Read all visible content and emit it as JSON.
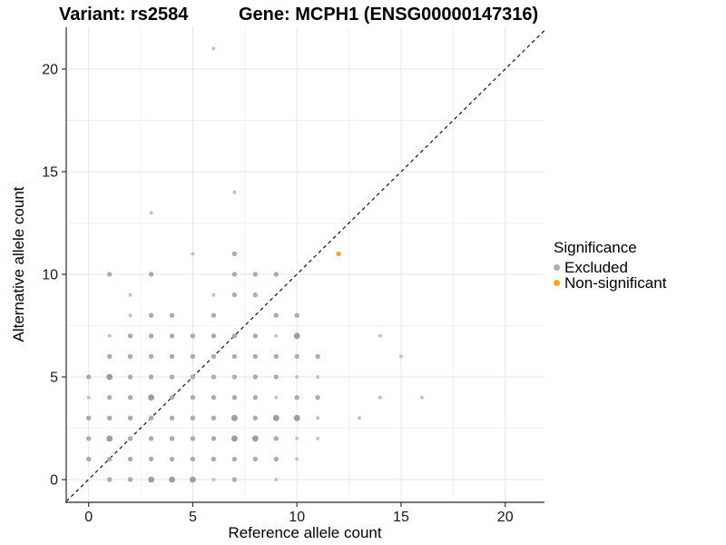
{
  "titles": {
    "left": "Variant: rs2584",
    "right": "Gene: MCPH1 (ENSG00000147316)"
  },
  "axes": {
    "x": {
      "label": "Reference allele count",
      "ticks": [
        0,
        5,
        10,
        15,
        20
      ],
      "minor_ticks": [
        2.5,
        7.5,
        12.5,
        17.5
      ]
    },
    "y": {
      "label": "Alternative allele count",
      "ticks": [
        0,
        5,
        10,
        15,
        20
      ],
      "minor_ticks": [
        2.5,
        7.5,
        12.5,
        17.5
      ]
    }
  },
  "legend": {
    "title": "Significance",
    "entries": [
      {
        "label": "Excluded",
        "color": "#acacac"
      },
      {
        "label": "Non-significant",
        "color": "#f7a434"
      }
    ]
  },
  "colors": {
    "axis_line": "#4a4a4a",
    "tick_mark": "#333333",
    "tick_label": "#1a1a1a",
    "grid_major": "#e6e6e6",
    "grid_minor": "#f2f2f2",
    "identity_line": "#111111",
    "size_tier_fill": {
      "1": "#c3c3c3",
      "2": "#acacac",
      "3": "#9d9d9d"
    }
  },
  "chart_data": {
    "type": "scatter",
    "title": "Variant: rs2584 | Gene: MCPH1 (ENSG00000147316)",
    "xlabel": "Reference allele count",
    "ylabel": "Alternative allele count",
    "xlim": [
      -1.1,
      21.9
    ],
    "ylim": [
      -1.1,
      22.0
    ],
    "grid": true,
    "legend_position": "right",
    "legend_title": "Significance",
    "identity_line": {
      "style": "dashed",
      "equation": "y = x"
    },
    "point_size_tiers_px_radius": {
      "1": 2.0,
      "2": 2.7,
      "3": 3.4
    },
    "series": [
      {
        "name": "Excluded",
        "color": "#acacac",
        "points": [
          [
            1,
            0,
            2
          ],
          [
            2,
            0,
            2
          ],
          [
            3,
            0,
            3
          ],
          [
            4,
            0,
            3
          ],
          [
            5,
            0,
            3
          ],
          [
            6,
            0,
            1
          ],
          [
            7,
            0,
            2
          ],
          [
            9,
            0,
            1
          ],
          [
            0,
            1,
            2
          ],
          [
            1,
            1,
            2
          ],
          [
            2,
            1,
            2
          ],
          [
            3,
            1,
            2
          ],
          [
            4,
            1,
            2
          ],
          [
            5,
            1,
            2
          ],
          [
            6,
            1,
            2
          ],
          [
            7,
            1,
            2
          ],
          [
            8,
            1,
            2
          ],
          [
            9,
            1,
            2
          ],
          [
            10,
            1,
            1
          ],
          [
            0,
            2,
            2
          ],
          [
            1,
            2,
            3
          ],
          [
            2,
            2,
            2
          ],
          [
            3,
            2,
            2
          ],
          [
            4,
            2,
            2
          ],
          [
            5,
            2,
            2
          ],
          [
            6,
            2,
            2
          ],
          [
            7,
            2,
            3
          ],
          [
            8,
            2,
            3
          ],
          [
            9,
            2,
            2
          ],
          [
            10,
            2,
            1
          ],
          [
            11,
            2,
            1
          ],
          [
            0,
            3,
            2
          ],
          [
            1,
            3,
            2
          ],
          [
            2,
            3,
            2
          ],
          [
            3,
            3,
            2
          ],
          [
            4,
            3,
            2
          ],
          [
            5,
            3,
            2
          ],
          [
            6,
            3,
            2
          ],
          [
            7,
            3,
            3
          ],
          [
            8,
            3,
            2
          ],
          [
            9,
            3,
            3
          ],
          [
            10,
            3,
            3
          ],
          [
            11,
            3,
            1
          ],
          [
            13,
            3,
            1
          ],
          [
            0,
            4,
            1
          ],
          [
            1,
            4,
            2
          ],
          [
            2,
            4,
            2
          ],
          [
            3,
            4,
            3
          ],
          [
            4,
            4,
            2
          ],
          [
            5,
            4,
            2
          ],
          [
            6,
            4,
            2
          ],
          [
            7,
            4,
            2
          ],
          [
            8,
            4,
            2
          ],
          [
            9,
            4,
            1
          ],
          [
            10,
            4,
            2
          ],
          [
            11,
            4,
            2
          ],
          [
            14,
            4,
            1
          ],
          [
            16,
            4,
            1
          ],
          [
            0,
            5,
            2
          ],
          [
            1,
            5,
            3
          ],
          [
            2,
            5,
            2
          ],
          [
            3,
            5,
            2
          ],
          [
            4,
            5,
            2
          ],
          [
            5,
            5,
            2
          ],
          [
            6,
            5,
            2
          ],
          [
            7,
            5,
            2
          ],
          [
            8,
            5,
            2
          ],
          [
            9,
            5,
            2
          ],
          [
            10,
            5,
            1
          ],
          [
            11,
            5,
            1
          ],
          [
            1,
            6,
            2
          ],
          [
            2,
            6,
            2
          ],
          [
            3,
            6,
            2
          ],
          [
            4,
            6,
            2
          ],
          [
            5,
            6,
            2
          ],
          [
            6,
            6,
            2
          ],
          [
            7,
            6,
            2
          ],
          [
            8,
            6,
            2
          ],
          [
            9,
            6,
            2
          ],
          [
            10,
            6,
            2
          ],
          [
            11,
            6,
            2
          ],
          [
            15,
            6,
            1
          ],
          [
            1,
            7,
            1
          ],
          [
            2,
            7,
            2
          ],
          [
            3,
            7,
            2
          ],
          [
            4,
            7,
            2
          ],
          [
            5,
            7,
            2
          ],
          [
            6,
            7,
            2
          ],
          [
            7,
            7,
            2
          ],
          [
            8,
            7,
            2
          ],
          [
            9,
            7,
            1
          ],
          [
            10,
            7,
            3
          ],
          [
            14,
            7,
            1
          ],
          [
            2,
            8,
            1
          ],
          [
            3,
            8,
            2
          ],
          [
            4,
            8,
            2
          ],
          [
            6,
            8,
            2
          ],
          [
            9,
            8,
            2
          ],
          [
            10,
            8,
            2
          ],
          [
            2,
            9,
            1
          ],
          [
            6,
            9,
            1
          ],
          [
            7,
            9,
            2
          ],
          [
            8,
            9,
            2
          ],
          [
            1,
            10,
            2
          ],
          [
            3,
            10,
            2
          ],
          [
            7,
            10,
            2
          ],
          [
            8,
            10,
            2
          ],
          [
            9,
            10,
            2
          ],
          [
            5,
            11,
            1
          ],
          [
            7,
            11,
            2
          ],
          [
            3,
            13,
            1
          ],
          [
            7,
            14,
            1
          ],
          [
            6,
            21,
            1
          ]
        ]
      },
      {
        "name": "Non-significant",
        "color": "#f7a434",
        "points": [
          [
            12,
            11,
            2
          ]
        ]
      }
    ]
  }
}
